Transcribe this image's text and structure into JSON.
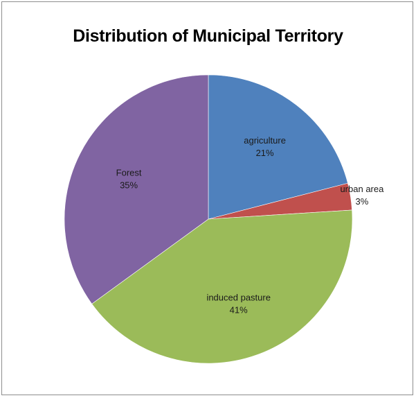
{
  "chart_data": {
    "type": "pie",
    "title": "Distribution of Municipal Territory",
    "legend": "none",
    "slices": [
      {
        "label": "agriculture",
        "value": 21,
        "percent_label": "21%",
        "color": "#4F81BD"
      },
      {
        "label": "urban area",
        "value": 3,
        "percent_label": "3%",
        "color": "#C0504D"
      },
      {
        "label": "induced pasture",
        "value": 41,
        "percent_label": "41%",
        "color": "#9BBB59"
      },
      {
        "label": "Forest",
        "value": 35,
        "percent_label": "35%",
        "color": "#8064A2"
      }
    ]
  }
}
